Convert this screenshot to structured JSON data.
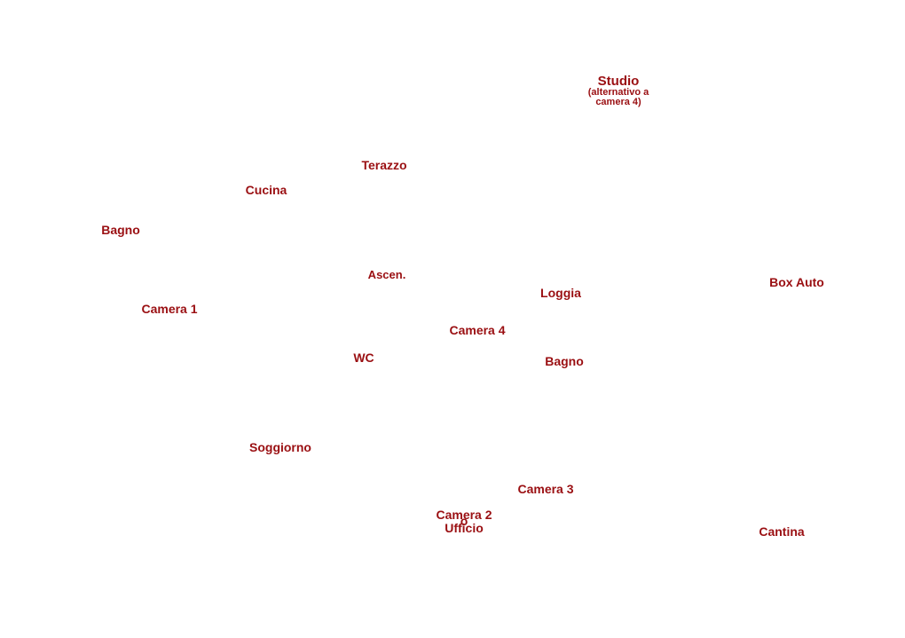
{
  "labels": {
    "studio": "Studio",
    "studio_note_1": "(alternativo a",
    "studio_note_2": "camera 4)",
    "terazzo": "Terazzo",
    "cucina": "Cucina",
    "bagno_left": "Bagno",
    "ascen": "Ascen.",
    "loggia": "Loggia",
    "box_auto": "Box Auto",
    "camera1": "Camera 1",
    "camera4": "Camera 4",
    "wc": "WC",
    "bagno_right": "Bagno",
    "soggiorno": "Soggiorno",
    "camera3": "Camera 3",
    "camera2": "Camera 2",
    "camera2_o": "o",
    "ufficio": "Ufficio",
    "cantina": "Cantina"
  },
  "colors": {
    "label_text": "#9a0f12",
    "background": "#ffffff"
  }
}
